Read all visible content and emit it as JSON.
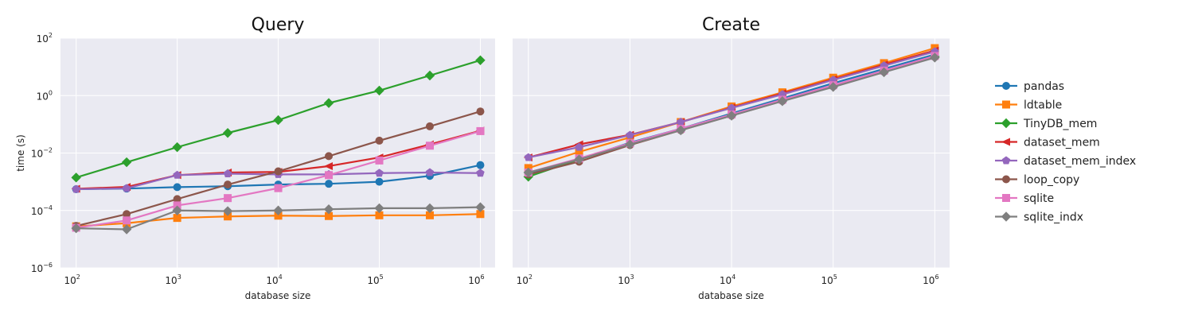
{
  "chart_data": [
    {
      "type": "line",
      "title": "Query",
      "xlabel": "database size",
      "ylabel": "time (s)",
      "xscale": "log",
      "yscale": "log",
      "xlim": [
        70,
        1400000
      ],
      "ylim": [
        1e-06,
        100
      ],
      "xticks": [
        {
          "base": "10",
          "exp": "2"
        },
        {
          "base": "10",
          "exp": "3"
        },
        {
          "base": "10",
          "exp": "4"
        },
        {
          "base": "10",
          "exp": "5"
        },
        {
          "base": "10",
          "exp": "6"
        }
      ],
      "yticks": [
        {
          "base": "10",
          "exp": "2"
        },
        {
          "base": "10",
          "exp": "0"
        },
        {
          "base": "10",
          "exp": "−2"
        },
        {
          "base": "10",
          "exp": "−4"
        },
        {
          "base": "10",
          "exp": "−6"
        }
      ],
      "grid": true,
      "x": [
        100,
        316,
        1000,
        3162,
        10000,
        31623,
        100000,
        316228,
        1000000
      ],
      "series": [
        {
          "name": "pandas",
          "color": "#1f77b4",
          "marker": "circle",
          "values": [
            0.00055,
            0.00058,
            0.00065,
            0.0007,
            0.0008,
            0.00085,
            0.001,
            0.0016,
            0.0038
          ]
        },
        {
          "name": "ldtable",
          "color": "#ff7f0e",
          "marker": "square",
          "values": [
            2.8e-05,
            3.6e-05,
            5.5e-05,
            6.2e-05,
            6.6e-05,
            6.4e-05,
            6.8e-05,
            6.8e-05,
            7.5e-05
          ]
        },
        {
          "name": "TinyDB_mem",
          "color": "#2ca02c",
          "marker": "diamond",
          "values": [
            0.0014,
            0.0048,
            0.016,
            0.05,
            0.14,
            0.55,
            1.5,
            5.0,
            17.0
          ]
        },
        {
          "name": "dataset_mem",
          "color": "#d62728",
          "marker": "triangle-left",
          "values": [
            0.00057,
            0.00066,
            0.0017,
            0.0021,
            0.0022,
            0.0035,
            0.007,
            0.02,
            0.06
          ]
        },
        {
          "name": "dataset_mem_index",
          "color": "#9467bd",
          "marker": "pentagon",
          "values": [
            0.00055,
            0.00059,
            0.0017,
            0.0019,
            0.0018,
            0.0018,
            0.002,
            0.0021,
            0.002
          ]
        },
        {
          "name": "loop_copy",
          "color": "#8c564b",
          "marker": "circle",
          "values": [
            2.9e-05,
            7.5e-05,
            0.00025,
            0.0008,
            0.0023,
            0.0078,
            0.027,
            0.085,
            0.28
          ]
        },
        {
          "name": "sqlite",
          "color": "#e377c2",
          "marker": "square",
          "values": [
            2.5e-05,
            4.5e-05,
            0.00015,
            0.00027,
            0.0006,
            0.0017,
            0.0055,
            0.018,
            0.058
          ]
        },
        {
          "name": "sqlite_indx",
          "color": "#7f7f7f",
          "marker": "diamond",
          "values": [
            2.4e-05,
            2.2e-05,
            0.0001,
            9.5e-05,
            0.0001,
            0.00011,
            0.00012,
            0.00012,
            0.00013
          ]
        }
      ]
    },
    {
      "type": "line",
      "title": "Create",
      "xlabel": "database size",
      "ylabel": "",
      "xscale": "log",
      "yscale": "log",
      "xlim": [
        70,
        1400000
      ],
      "ylim": [
        1e-06,
        100
      ],
      "xticks": [
        {
          "base": "10",
          "exp": "2"
        },
        {
          "base": "10",
          "exp": "3"
        },
        {
          "base": "10",
          "exp": "4"
        },
        {
          "base": "10",
          "exp": "5"
        },
        {
          "base": "10",
          "exp": "6"
        }
      ],
      "yticks": [],
      "grid": true,
      "x": [
        100,
        316,
        1000,
        3162,
        10000,
        31623,
        100000,
        316228,
        1000000
      ],
      "series": [
        {
          "name": "pandas",
          "color": "#1f77b4",
          "marker": "circle",
          "values": [
            0.002,
            0.006,
            0.023,
            0.07,
            0.24,
            0.8,
            2.7,
            8.5,
            27
          ]
        },
        {
          "name": "ldtable",
          "color": "#ff7f0e",
          "marker": "square",
          "values": [
            0.003,
            0.011,
            0.035,
            0.12,
            0.42,
            1.3,
            4.2,
            13.5,
            45
          ]
        },
        {
          "name": "TinyDB_mem",
          "color": "#2ca02c",
          "marker": "diamond",
          "values": [
            0.0015,
            0.006,
            0.02,
            0.065,
            0.21,
            0.68,
            2.2,
            7.2,
            23
          ]
        },
        {
          "name": "dataset_mem",
          "color": "#d62728",
          "marker": "triangle-left",
          "values": [
            0.007,
            0.02,
            0.043,
            0.12,
            0.38,
            1.2,
            3.7,
            12,
            37
          ]
        },
        {
          "name": "dataset_mem_index",
          "color": "#9467bd",
          "marker": "pentagon",
          "values": [
            0.007,
            0.016,
            0.042,
            0.12,
            0.37,
            1.1,
            3.5,
            11,
            34
          ]
        },
        {
          "name": "loop_copy",
          "color": "#8c564b",
          "marker": "circle",
          "values": [
            0.0018,
            0.005,
            0.019,
            0.062,
            0.2,
            0.65,
            2.1,
            6.8,
            22
          ]
        },
        {
          "name": "sqlite",
          "color": "#e377c2",
          "marker": "square",
          "values": [
            0.0021,
            0.0065,
            0.022,
            0.07,
            0.22,
            0.72,
            2.3,
            7.4,
            24
          ]
        },
        {
          "name": "sqlite_indx",
          "color": "#7f7f7f",
          "marker": "diamond",
          "values": [
            0.0021,
            0.006,
            0.02,
            0.062,
            0.2,
            0.64,
            2.0,
            6.5,
            21
          ]
        }
      ]
    }
  ],
  "legend": {
    "placement": "right",
    "items": [
      "pandas",
      "ldtable",
      "TinyDB_mem",
      "dataset_mem",
      "dataset_mem_index",
      "loop_copy",
      "sqlite",
      "sqlite_indx"
    ]
  }
}
